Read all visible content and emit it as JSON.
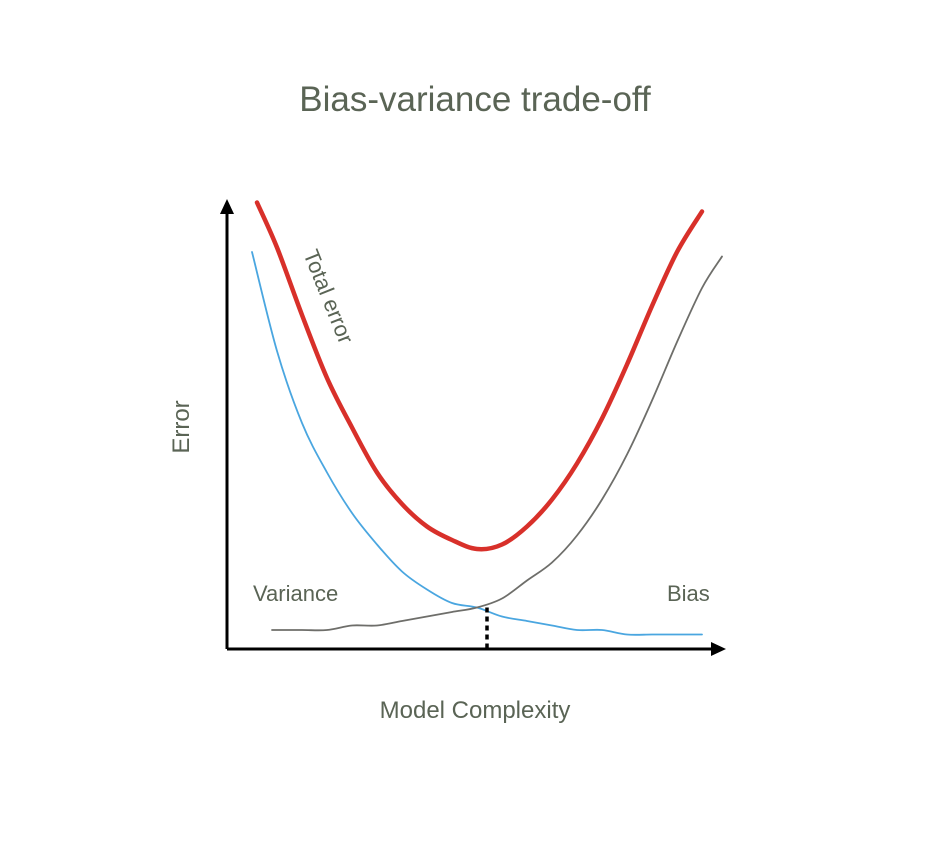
{
  "chart_data": {
    "type": "line",
    "title": "Bias-variance trade-off",
    "xlabel": "Model Complexity",
    "ylabel": "Error",
    "grid": false,
    "legend": "none",
    "xlim": [
      0,
      1
    ],
    "ylim": [
      0,
      1
    ],
    "series": [
      {
        "name": "Total error",
        "color": "#d8302a",
        "x": [
          0.06,
          0.1,
          0.15,
          0.2,
          0.25,
          0.3,
          0.35,
          0.4,
          0.45,
          0.5,
          0.55,
          0.6,
          0.65,
          0.7,
          0.75,
          0.8,
          0.85,
          0.9,
          0.95
        ],
        "y": [
          0.99,
          0.89,
          0.74,
          0.6,
          0.49,
          0.39,
          0.32,
          0.27,
          0.24,
          0.22,
          0.23,
          0.27,
          0.33,
          0.41,
          0.51,
          0.63,
          0.76,
          0.88,
          0.97
        ]
      },
      {
        "name": "Variance",
        "color": "#4aa6e0",
        "x": [
          0.05,
          0.1,
          0.15,
          0.2,
          0.25,
          0.3,
          0.35,
          0.4,
          0.45,
          0.5,
          0.55,
          0.6,
          0.65,
          0.7,
          0.75,
          0.8,
          0.85,
          0.9,
          0.95
        ],
        "y": [
          0.88,
          0.66,
          0.5,
          0.39,
          0.3,
          0.23,
          0.17,
          0.13,
          0.1,
          0.09,
          0.07,
          0.06,
          0.05,
          0.04,
          0.04,
          0.03,
          0.03,
          0.03,
          0.03
        ]
      },
      {
        "name": "Bias",
        "color": "#6e6e6a",
        "x": [
          0.09,
          0.15,
          0.2,
          0.25,
          0.3,
          0.35,
          0.4,
          0.45,
          0.5,
          0.55,
          0.6,
          0.65,
          0.7,
          0.75,
          0.8,
          0.85,
          0.9,
          0.95,
          0.99
        ],
        "y": [
          0.04,
          0.04,
          0.04,
          0.05,
          0.05,
          0.06,
          0.07,
          0.08,
          0.09,
          0.11,
          0.15,
          0.19,
          0.25,
          0.33,
          0.43,
          0.55,
          0.68,
          0.8,
          0.87
        ]
      }
    ],
    "annotations": [
      {
        "text": "Total error",
        "series": "Total error"
      },
      {
        "text": "Variance",
        "series": "Variance"
      },
      {
        "text": "Bias",
        "series": "Bias"
      }
    ],
    "optimum": {
      "x": 0.52,
      "y": 0.09,
      "style": "dotted"
    }
  }
}
